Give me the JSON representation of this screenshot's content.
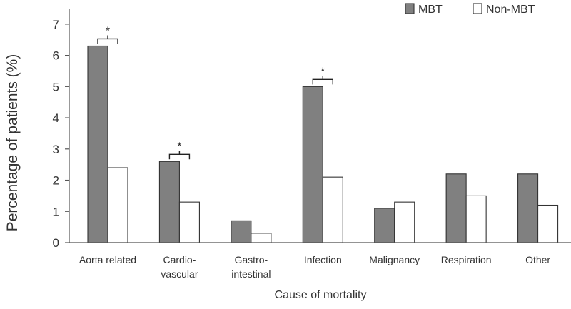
{
  "chart_data": {
    "type": "bar",
    "xlabel": "Cause of mortality",
    "ylabel": "Percentage of patients (%)",
    "ylim": [
      0,
      7.5
    ],
    "yticks": [
      0,
      1,
      2,
      3,
      4,
      5,
      6,
      7
    ],
    "categories": [
      [
        "Aorta related"
      ],
      [
        "Cardio-",
        "vascular"
      ],
      [
        "Gastro-",
        "intestinal"
      ],
      [
        "Infection"
      ],
      [
        "Malignancy"
      ],
      [
        "Respiration"
      ],
      [
        "Other"
      ]
    ],
    "series": [
      {
        "name": "MBT",
        "color": "#808080",
        "values": [
          6.3,
          2.6,
          0.7,
          5.0,
          1.1,
          2.2,
          2.2
        ]
      },
      {
        "name": "Non-MBT",
        "color": "#ffffff",
        "values": [
          2.4,
          1.3,
          0.3,
          2.1,
          1.3,
          1.5,
          1.2
        ]
      }
    ],
    "significance": [
      {
        "category_index": 0,
        "label": "*"
      },
      {
        "category_index": 1,
        "label": "*"
      },
      {
        "category_index": 3,
        "label": "*"
      }
    ],
    "grid": false,
    "legend": "top-right"
  }
}
